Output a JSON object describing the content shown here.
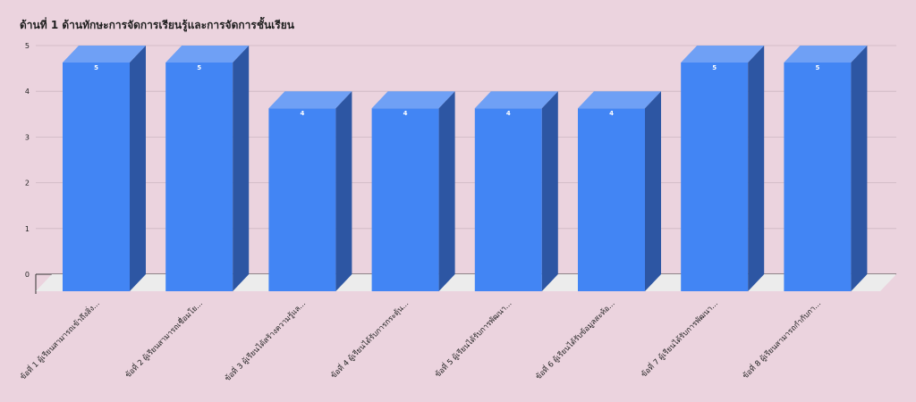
{
  "chart_data": {
    "type": "bar",
    "title": "ด้านที่ 1 ด้านทักษะการจัดการเรียนรู้และการจัดการชั้นเรียน",
    "categories": [
      "ข้อที่ 1 ผู้เรียนสามารถเข้าถึงสิ่ง...",
      "ข้อที่ 2 ผู้เรียนสามารถเชื่อมโย...",
      "ข้อที่ 3 ผู้เรียนได้สร้างความรู้แล...",
      "ข้อที่ 4 ผู้เรียนได้รับการกระตุ้น...",
      "ข้อที่ 5 ผู้เรียนได้รับการพัฒนา...",
      "ข้อที่ 6 ผู้เรียนได้รับข้อมูลสะท้อ...",
      "ข้อที่ 7 ผู้เรียนได้รับการพัฒนา...",
      "ข้อที่ 8 ผู้เรียนสามารถกำกับกา..."
    ],
    "values": [
      5,
      5,
      4,
      4,
      4,
      4,
      5,
      5
    ],
    "data_labels": [
      "5",
      "5",
      "4",
      "4",
      "4",
      "4",
      "5",
      "5"
    ],
    "ylim": [
      0,
      5
    ],
    "yticks": [
      "0",
      "1",
      "2",
      "3",
      "4",
      "5"
    ],
    "grid": true,
    "style": "3d",
    "colors": {
      "bar_front": "#4285f4",
      "bar_top": "#6fa0f5",
      "bar_side": "#2d56a3",
      "floor": "#ececec",
      "background": "#ebd3de",
      "grid": "#cdb6c1"
    }
  }
}
